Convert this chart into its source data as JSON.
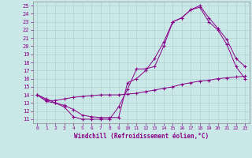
{
  "xlabel": "Windchill (Refroidissement éolien,°C)",
  "bg_color": "#cbe8e8",
  "line_color": "#880088",
  "xlim": [
    -0.5,
    23.5
  ],
  "ylim": [
    10.5,
    25.5
  ],
  "xticks": [
    0,
    1,
    2,
    3,
    4,
    5,
    6,
    7,
    8,
    9,
    10,
    11,
    12,
    13,
    14,
    15,
    16,
    17,
    18,
    19,
    20,
    21,
    22,
    23
  ],
  "yticks": [
    11,
    12,
    13,
    14,
    15,
    16,
    17,
    18,
    19,
    20,
    21,
    22,
    23,
    24,
    25
  ],
  "curve1_x": [
    0,
    1,
    2,
    3,
    4,
    5,
    6,
    7,
    8,
    9,
    10,
    11,
    12,
    13,
    14,
    15,
    16,
    17,
    18,
    19,
    20,
    21,
    22,
    23
  ],
  "curve1_y": [
    14.0,
    13.2,
    13.0,
    12.5,
    11.3,
    11.0,
    11.0,
    11.0,
    11.0,
    12.5,
    14.7,
    17.2,
    17.2,
    17.5,
    20.0,
    23.0,
    23.5,
    24.5,
    24.8,
    23.0,
    22.0,
    20.2,
    17.5,
    16.0
  ],
  "curve2_x": [
    0,
    1,
    2,
    3,
    4,
    5,
    6,
    7,
    8,
    9,
    10,
    11,
    12,
    13,
    14,
    15,
    16,
    17,
    18,
    19,
    20,
    21,
    22,
    23
  ],
  "curve2_y": [
    14.0,
    13.5,
    13.0,
    12.7,
    12.2,
    11.5,
    11.3,
    11.2,
    11.2,
    11.2,
    15.5,
    16.0,
    17.0,
    18.5,
    20.5,
    23.0,
    23.5,
    24.5,
    25.0,
    23.5,
    22.2,
    20.8,
    18.5,
    17.5
  ],
  "curve3_x": [
    0,
    1,
    2,
    3,
    4,
    5,
    6,
    7,
    8,
    9,
    10,
    11,
    12,
    13,
    14,
    15,
    16,
    17,
    18,
    19,
    20,
    21,
    22,
    23
  ],
  "curve3_y": [
    14.0,
    13.3,
    13.3,
    13.5,
    13.7,
    13.8,
    13.9,
    14.0,
    14.0,
    14.0,
    14.1,
    14.2,
    14.4,
    14.6,
    14.8,
    15.0,
    15.3,
    15.5,
    15.7,
    15.8,
    16.0,
    16.1,
    16.2,
    16.3
  ]
}
